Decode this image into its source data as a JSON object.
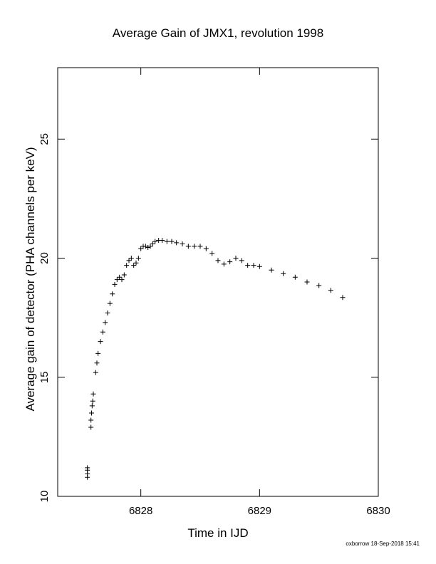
{
  "chart_data": {
    "type": "scatter",
    "title": "Average Gain of JMX1, revolution 1998",
    "xlabel": "Time in IJD",
    "ylabel": "Average gain of detector (PHA channels per keV)",
    "xlim": [
      6827.3,
      6830
    ],
    "ylim": [
      10,
      28
    ],
    "xticks": [
      6828,
      6829,
      6830
    ],
    "yticks": [
      10,
      15,
      20,
      25
    ],
    "grid": false,
    "marker": "plus",
    "footer": "oxborrow 18-Sep-2018 15:41",
    "series": [
      {
        "x": [
          6827.55,
          6827.55,
          6827.55,
          6827.55,
          6827.58,
          6827.58,
          6827.585,
          6827.59,
          6827.595,
          6827.6,
          6827.62,
          6827.63,
          6827.64,
          6827.66,
          6827.68,
          6827.7,
          6827.72,
          6827.74,
          6827.76,
          6827.78,
          6827.8,
          6827.82,
          6827.84,
          6827.86,
          6827.88,
          6827.9,
          6827.92,
          6827.94,
          6827.96,
          6827.98,
          6828.0,
          6828.02,
          6828.04,
          6828.06,
          6828.08,
          6828.1,
          6828.12,
          6828.15,
          6828.18,
          6828.22,
          6828.26,
          6828.3,
          6828.35,
          6828.4,
          6828.45,
          6828.5,
          6828.55,
          6828.6,
          6828.65,
          6828.7,
          6828.75,
          6828.8,
          6828.85,
          6828.9,
          6828.95,
          6829.0,
          6829.1,
          6829.2,
          6829.3,
          6829.4,
          6829.5,
          6829.6,
          6829.7
        ],
        "y": [
          10.8,
          10.95,
          11.1,
          11.2,
          12.9,
          13.2,
          13.5,
          13.8,
          14.0,
          14.3,
          15.2,
          15.6,
          16.0,
          16.5,
          16.9,
          17.3,
          17.7,
          18.1,
          18.5,
          18.9,
          19.1,
          19.2,
          19.1,
          19.3,
          19.7,
          19.9,
          20.0,
          19.7,
          19.8,
          20.0,
          20.4,
          20.5,
          20.5,
          20.45,
          20.5,
          20.6,
          20.7,
          20.75,
          20.75,
          20.7,
          20.7,
          20.65,
          20.6,
          20.5,
          20.5,
          20.5,
          20.4,
          20.2,
          19.9,
          19.75,
          19.85,
          20.0,
          19.9,
          19.7,
          19.7,
          19.65,
          19.5,
          19.35,
          19.2,
          19.0,
          18.85,
          18.65,
          18.35
        ]
      }
    ]
  }
}
